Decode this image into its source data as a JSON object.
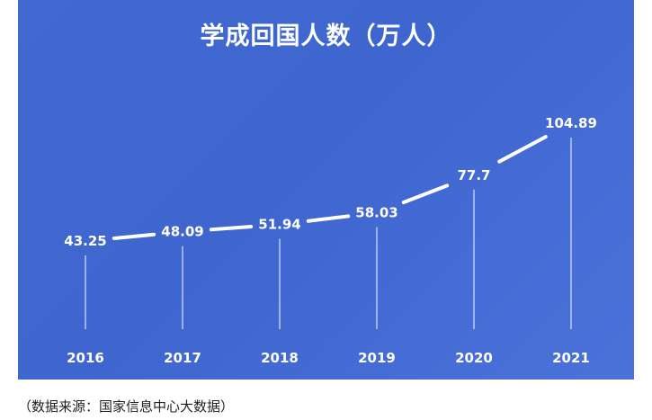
{
  "chart_data": {
    "type": "line",
    "title": "学成回国人数（万人）",
    "categories": [
      "2016",
      "2017",
      "2018",
      "2019",
      "2020",
      "2021"
    ],
    "series": [
      {
        "values": [
          43.25,
          48.09,
          51.94,
          58.03,
          77.7,
          104.89
        ],
        "value_labels": [
          "43.25",
          "48.09",
          "51.94",
          "58.03",
          "77.7",
          "104.89"
        ]
      }
    ],
    "xlabel": "",
    "ylabel": "",
    "grid": false,
    "colors": {
      "background": "#4169d1",
      "line": "#ffffff",
      "text": "#ffffff"
    }
  },
  "source_note": "（数据来源：国家信息中心大数据）"
}
